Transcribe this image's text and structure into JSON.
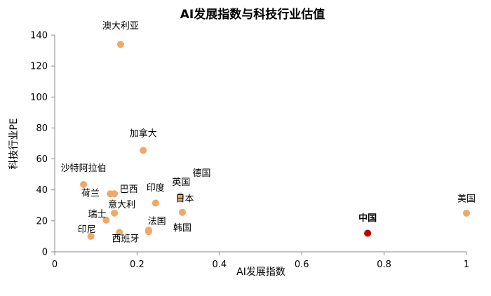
{
  "chart_data": {
    "type": "scatter",
    "title": "AI发展指数与科技行业估值",
    "xlabel": "AI发展指数",
    "ylabel": "科技行业PE",
    "xlim": [
      0,
      1
    ],
    "ylim": [
      0,
      140
    ],
    "x_ticks": [
      "0",
      "0.2",
      "0.4",
      "0.6",
      "0.8",
      "1"
    ],
    "y_ticks": [
      "0",
      "20",
      "40",
      "60",
      "80",
      "100",
      "120",
      "140"
    ],
    "grid": false,
    "colors": {
      "default": "#f0a868",
      "highlight": "#c00000"
    },
    "points": [
      {
        "label": "澳大利亚",
        "x": 0.16,
        "y": 134
      },
      {
        "label": "加拿大",
        "x": 0.215,
        "y": 65.5
      },
      {
        "label": "沙特阿拉伯",
        "x": 0.07,
        "y": 43.5
      },
      {
        "label": "荷兰",
        "x": 0.135,
        "y": 37.5
      },
      {
        "label": "巴西",
        "x": 0.145,
        "y": 37.5
      },
      {
        "label": "印度",
        "x": 0.245,
        "y": 31.5
      },
      {
        "label": "英国",
        "x": 0.305,
        "y": 35
      },
      {
        "label": "德国",
        "x": 0.305,
        "y": 36
      },
      {
        "label": "日本",
        "x": 0.31,
        "y": 25.5
      },
      {
        "label": "意大利",
        "x": 0.145,
        "y": 25
      },
      {
        "label": "瑞士",
        "x": 0.125,
        "y": 20.5
      },
      {
        "label": "法国",
        "x": 0.228,
        "y": 14
      },
      {
        "label": "法国",
        "x": 0.228,
        "y": 13
      },
      {
        "label": "西班牙",
        "x": 0.157,
        "y": 12.5
      },
      {
        "label": "印尼",
        "x": 0.088,
        "y": 10
      },
      {
        "label": "韩国",
        "x": 0.31,
        "y": 25.5
      },
      {
        "label": "中国",
        "x": 0.76,
        "y": 12,
        "highlight": true
      },
      {
        "label": "美国",
        "x": 1.0,
        "y": 25
      }
    ],
    "labels": [
      {
        "text": "澳大利亚",
        "x": 0.16,
        "y": 144,
        "bold": false
      },
      {
        "text": "加拿大",
        "x": 0.215,
        "y": 74.5,
        "bold": false
      },
      {
        "text": "沙特阿拉伯",
        "x": 0.07,
        "y": 52,
        "bold": false
      },
      {
        "text": "荷兰",
        "x": 0.087,
        "y": 36,
        "bold": false
      },
      {
        "text": "巴西",
        "x": 0.18,
        "y": 38.5,
        "bold": false
      },
      {
        "text": "印度",
        "x": 0.245,
        "y": 39.5,
        "bold": false
      },
      {
        "text": "英国",
        "x": 0.307,
        "y": 43,
        "bold": false
      },
      {
        "text": "德国",
        "x": 0.357,
        "y": 49,
        "bold": false
      },
      {
        "text": "日本",
        "x": 0.316,
        "y": 32.5,
        "bold": false
      },
      {
        "text": "意大利",
        "x": 0.163,
        "y": 28.5,
        "bold": false
      },
      {
        "text": "瑞士",
        "x": 0.103,
        "y": 22.5,
        "bold": false
      },
      {
        "text": "法国",
        "x": 0.248,
        "y": 18,
        "bold": false
      },
      {
        "text": "西班牙",
        "x": 0.172,
        "y": 6.5,
        "bold": false
      },
      {
        "text": "印尼",
        "x": 0.078,
        "y": 12.5,
        "bold": false
      },
      {
        "text": "韩国",
        "x": 0.31,
        "y": 13.5,
        "bold": false
      },
      {
        "text": "中国",
        "x": 0.76,
        "y": 20,
        "bold": true
      },
      {
        "text": "美国",
        "x": 1.0,
        "y": 32.5,
        "bold": false
      }
    ]
  }
}
